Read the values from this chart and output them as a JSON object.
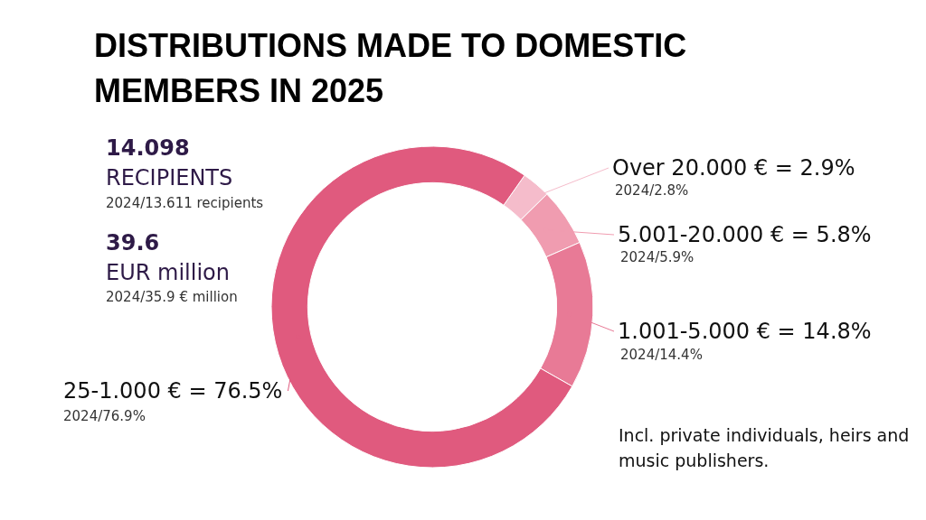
{
  "chart_data": {
    "type": "donut",
    "title": "DISTRIBUTIONS MADE TO DOMESTIC MEMBERS IN 2025",
    "categories": [
      "Over 20.000 € = 2.9%",
      "5.001-20.000 € = 5.8%",
      "1.001-5.000 € = 14.8%",
      "25-1.000 € = 76.5%"
    ],
    "values": [
      2.9,
      5.8,
      14.8,
      76.5
    ],
    "colors": [
      "#f5bccb",
      "#f09cb0",
      "#e87a96",
      "#e05a7e"
    ],
    "annotations": [
      "2024/2.8%",
      "2024/5.9%",
      "2024/14.4%",
      "2024/76.9%",
      "14.098",
      "RECIPIENTS",
      "2024/13.611 recipients",
      "39.6",
      "EUR million",
      "2024/35.9 € million",
      "Incl. private individuals, heirs and music publishers."
    ],
    "legend": false
  }
}
